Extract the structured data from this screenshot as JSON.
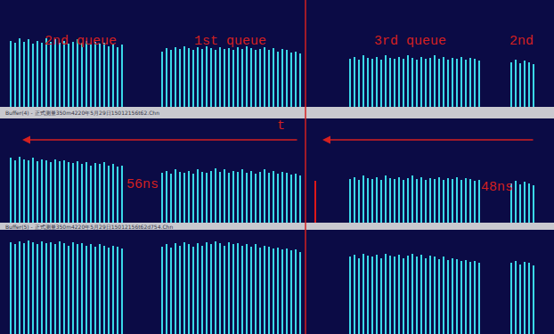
{
  "cursor_x": 343,
  "chart_data": [
    {
      "type": "bar",
      "color": "#3ad8e8",
      "xlim": [
        0,
        622
      ],
      "ylim": [
        0,
        100
      ],
      "tick_labels": false,
      "annotations": [
        "2nd queue",
        "1st queue",
        "3rd queue",
        "2nd"
      ],
      "series": [
        {
          "color": "#3ad8e8",
          "x": [
            12,
            17,
            22,
            27,
            32,
            37,
            42,
            47,
            52,
            57,
            62,
            67,
            72,
            77,
            82,
            87,
            92,
            97,
            102,
            107,
            112,
            117,
            122,
            127,
            132,
            137,
            182,
            187,
            192,
            197,
            202,
            207,
            212,
            217,
            222,
            227,
            232,
            237,
            242,
            247,
            252,
            257,
            262,
            267,
            272,
            277,
            282,
            287,
            292,
            297,
            302,
            307,
            312,
            317,
            322,
            327,
            332,
            337,
            393,
            398,
            403,
            408,
            413,
            418,
            423,
            428,
            433,
            438,
            443,
            448,
            453,
            458,
            463,
            468,
            473,
            478,
            483,
            488,
            493,
            498,
            503,
            508,
            513,
            518,
            523,
            528,
            533,
            538,
            574,
            579,
            584,
            589,
            594,
            599
          ],
          "values": [
            62,
            60,
            64,
            61,
            63,
            59,
            62,
            60,
            64,
            61,
            63,
            60,
            62,
            59,
            61,
            63,
            60,
            62,
            58,
            61,
            59,
            60,
            57,
            59,
            56,
            58,
            52,
            55,
            53,
            56,
            54,
            57,
            55,
            53,
            56,
            54,
            57,
            55,
            53,
            56,
            54,
            55,
            53,
            56,
            54,
            57,
            55,
            53,
            54,
            56,
            53,
            55,
            52,
            54,
            53,
            51,
            52,
            50,
            45,
            47,
            44,
            48,
            46,
            45,
            47,
            44,
            48,
            46,
            45,
            47,
            45,
            48,
            46,
            44,
            47,
            45,
            46,
            48,
            45,
            47,
            44,
            46,
            45,
            47,
            44,
            46,
            45,
            43,
            42,
            44,
            41,
            43,
            42,
            40
          ]
        }
      ]
    },
    {
      "type": "bar",
      "color": "#3ad8e8",
      "xlim": [
        0,
        622
      ],
      "ylim": [
        0,
        100
      ],
      "tick_labels": false,
      "title": "Buffer(4) - 正式测量350m4220年5月29日15012156t62.Chn",
      "annotations": [
        "t",
        "56ns",
        "48ns"
      ],
      "series": [
        {
          "color": "#3ad8e8",
          "x": [
            12,
            17,
            22,
            27,
            32,
            37,
            42,
            47,
            52,
            57,
            62,
            67,
            72,
            77,
            82,
            87,
            92,
            97,
            102,
            107,
            112,
            117,
            122,
            127,
            132,
            137,
            182,
            187,
            192,
            197,
            202,
            207,
            212,
            217,
            222,
            227,
            232,
            237,
            242,
            247,
            252,
            257,
            262,
            267,
            272,
            277,
            282,
            287,
            292,
            297,
            302,
            307,
            312,
            317,
            322,
            327,
            332,
            337,
            393,
            398,
            403,
            408,
            413,
            418,
            423,
            428,
            433,
            438,
            443,
            448,
            453,
            458,
            463,
            468,
            473,
            478,
            483,
            488,
            493,
            498,
            503,
            508,
            513,
            518,
            523,
            528,
            533,
            538,
            574,
            579,
            584,
            589,
            594,
            599
          ],
          "values": [
            62,
            60,
            63,
            61,
            60,
            62,
            59,
            61,
            60,
            58,
            61,
            59,
            60,
            58,
            57,
            59,
            56,
            58,
            55,
            57,
            56,
            58,
            55,
            56,
            54,
            55,
            48,
            50,
            47,
            51,
            49,
            48,
            50,
            47,
            51,
            49,
            48,
            50,
            52,
            49,
            51,
            48,
            50,
            49,
            51,
            48,
            50,
            47,
            49,
            51,
            48,
            50,
            47,
            49,
            48,
            46,
            47,
            45,
            42,
            44,
            41,
            45,
            43,
            42,
            44,
            41,
            45,
            43,
            42,
            44,
            41,
            43,
            45,
            42,
            44,
            41,
            43,
            42,
            44,
            41,
            43,
            42,
            44,
            41,
            43,
            42,
            40,
            41,
            38,
            40,
            37,
            39,
            38,
            36
          ]
        },
        {
          "color": "#e01818",
          "x": [
            354
          ],
          "values": [
            40
          ]
        }
      ]
    },
    {
      "type": "bar",
      "color": "#3ad8e8",
      "xlim": [
        0,
        622
      ],
      "ylim": [
        0,
        100
      ],
      "tick_labels": false,
      "title": "Buffer(5) - 正式测量350m4220年5月29日15012156t62d754.Chn",
      "series": [
        {
          "color": "#3ad8e8",
          "x": [
            12,
            17,
            22,
            27,
            32,
            37,
            42,
            47,
            52,
            57,
            62,
            67,
            72,
            77,
            82,
            87,
            92,
            97,
            102,
            107,
            112,
            117,
            122,
            127,
            132,
            137,
            182,
            187,
            192,
            197,
            202,
            207,
            212,
            217,
            222,
            227,
            232,
            237,
            242,
            247,
            252,
            257,
            262,
            267,
            272,
            277,
            282,
            287,
            292,
            297,
            302,
            307,
            312,
            317,
            322,
            327,
            332,
            337,
            393,
            398,
            403,
            408,
            413,
            418,
            423,
            428,
            433,
            438,
            443,
            448,
            453,
            458,
            463,
            468,
            473,
            478,
            483,
            488,
            493,
            498,
            503,
            508,
            513,
            518,
            523,
            528,
            533,
            538,
            574,
            579,
            584,
            589,
            594,
            599
          ],
          "values": [
            88,
            86,
            89,
            87,
            90,
            88,
            86,
            89,
            87,
            88,
            86,
            89,
            87,
            85,
            88,
            86,
            87,
            85,
            86,
            84,
            86,
            85,
            83,
            85,
            84,
            82,
            84,
            86,
            83,
            87,
            85,
            88,
            86,
            84,
            87,
            85,
            88,
            86,
            89,
            87,
            85,
            88,
            86,
            87,
            85,
            86,
            84,
            86,
            83,
            85,
            84,
            82,
            83,
            81,
            82,
            80,
            81,
            79,
            74,
            76,
            73,
            77,
            75,
            74,
            76,
            73,
            77,
            75,
            74,
            76,
            73,
            75,
            77,
            74,
            76,
            73,
            75,
            74,
            72,
            74,
            71,
            73,
            72,
            70,
            71,
            69,
            70,
            68,
            68,
            70,
            67,
            69,
            68,
            66
          ]
        }
      ]
    }
  ]
}
